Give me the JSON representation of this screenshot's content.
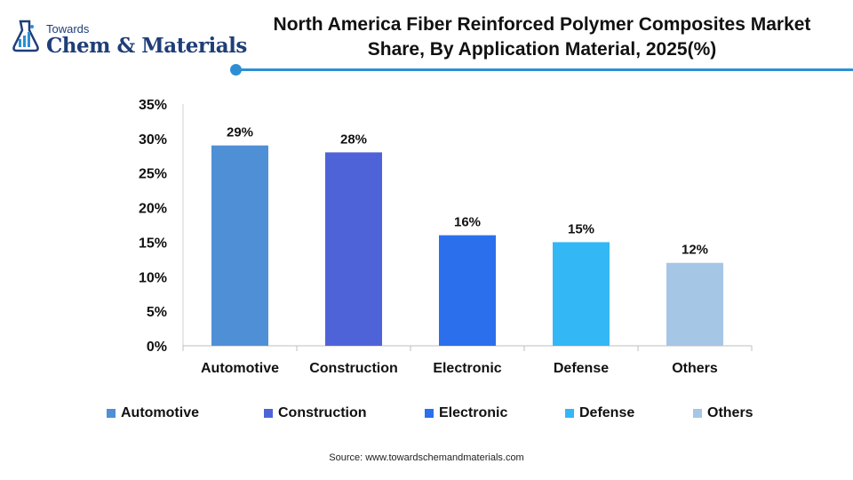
{
  "logo": {
    "top_text": "Towards",
    "main_text": "Chem & Materials"
  },
  "header": {
    "title_line1": "North America Fiber Reinforced Polymer Composites Market",
    "title_line2": "Share, By Application Material, 2025(%)"
  },
  "colors": {
    "Automotive": "#4f8fd6",
    "Construction": "#4f63d9",
    "Electronic": "#2b6fec",
    "Defense": "#33b7f5",
    "Others": "#a6c6e6",
    "accent": "#2c8fd6"
  },
  "chart_data": {
    "type": "bar",
    "categories": [
      "Automotive",
      "Construction",
      "Electronic",
      "Defense",
      "Others"
    ],
    "values": [
      29,
      28,
      16,
      15,
      12
    ],
    "data_labels": [
      "29%",
      "28%",
      "16%",
      "15%",
      "12%"
    ],
    "ylim": [
      0,
      35
    ],
    "yticks": [
      0,
      5,
      10,
      15,
      20,
      25,
      30,
      35
    ],
    "ytick_labels": [
      "0%",
      "5%",
      "10%",
      "15%",
      "20%",
      "25%",
      "30%",
      "35%"
    ],
    "grid": false,
    "legend": "bottom",
    "legend_entries": [
      "Automotive",
      "Construction",
      "Electronic",
      "Defense",
      "Others"
    ]
  },
  "footer": {
    "source": "Source: www.towardschemandmaterials.com"
  }
}
